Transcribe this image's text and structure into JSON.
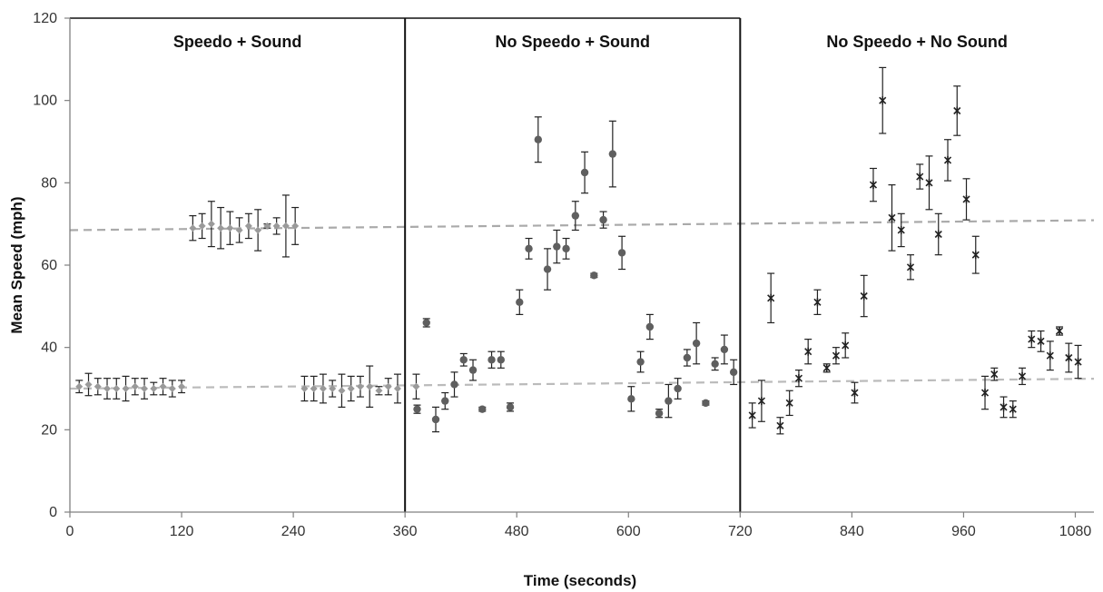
{
  "chart_data": {
    "type": "scatter",
    "title": "",
    "xlabel": "Time (seconds)",
    "ylabel": "Mean Speed (mph)",
    "xlim": [
      0,
      1100
    ],
    "ylim": [
      0,
      120
    ],
    "x_ticks": [
      0,
      120,
      240,
      360,
      480,
      600,
      720,
      840,
      960,
      1080
    ],
    "y_ticks": [
      0,
      20,
      40,
      60,
      80,
      100,
      120
    ],
    "grid": false,
    "phase_dividers": [
      360,
      720
    ],
    "phases": [
      {
        "label": "Speedo + Sound",
        "x_center": 180
      },
      {
        "label": "No Speedo + Sound",
        "x_center": 540
      },
      {
        "label": "No Speedo + No  Sound",
        "x_center": 910
      }
    ],
    "trend_lines": [
      {
        "x": [
          0,
          1100
        ],
        "y": [
          68.5,
          70.9
        ],
        "color": "#aaaaaa"
      },
      {
        "x": [
          0,
          1100
        ],
        "y": [
          30.0,
          32.4
        ],
        "color": "#bbbbbb"
      }
    ],
    "series": [
      {
        "marker": "diamond",
        "color": "#9a9a9a",
        "points": [
          {
            "x": 10,
            "y": 30.5,
            "err": 1.5
          },
          {
            "x": 20,
            "y": 31.0,
            "err": 2.7
          },
          {
            "x": 30,
            "y": 30.5,
            "err": 2.0
          },
          {
            "x": 40,
            "y": 30.0,
            "err": 2.5
          },
          {
            "x": 50,
            "y": 30.0,
            "err": 2.5
          },
          {
            "x": 60,
            "y": 30.0,
            "err": 3.0
          },
          {
            "x": 70,
            "y": 30.5,
            "err": 2.0
          },
          {
            "x": 80,
            "y": 30.0,
            "err": 2.5
          },
          {
            "x": 90,
            "y": 30.0,
            "err": 1.5
          },
          {
            "x": 100,
            "y": 30.5,
            "err": 2.0
          },
          {
            "x": 110,
            "y": 30.0,
            "err": 2.0
          },
          {
            "x": 120,
            "y": 30.5,
            "err": 1.5
          },
          {
            "x": 132,
            "y": 69.0,
            "err": 3.0
          },
          {
            "x": 142,
            "y": 69.5,
            "err": 3.0
          },
          {
            "x": 152,
            "y": 70.0,
            "err": 5.5
          },
          {
            "x": 162,
            "y": 69.0,
            "err": 5.0
          },
          {
            "x": 172,
            "y": 69.0,
            "err": 4.0
          },
          {
            "x": 182,
            "y": 68.5,
            "err": 3.0
          },
          {
            "x": 192,
            "y": 69.5,
            "err": 3.0
          },
          {
            "x": 202,
            "y": 68.5,
            "err": 5.0
          },
          {
            "x": 212,
            "y": 69.5,
            "err": 0.5
          },
          {
            "x": 222,
            "y": 69.5,
            "err": 2.0
          },
          {
            "x": 232,
            "y": 69.5,
            "err": 7.5
          },
          {
            "x": 242,
            "y": 69.5,
            "err": 4.5
          },
          {
            "x": 252,
            "y": 30.0,
            "err": 3.0
          },
          {
            "x": 262,
            "y": 30.0,
            "err": 3.0
          },
          {
            "x": 272,
            "y": 30.0,
            "err": 3.5
          },
          {
            "x": 282,
            "y": 30.0,
            "err": 2.0
          },
          {
            "x": 292,
            "y": 29.5,
            "err": 4.0
          },
          {
            "x": 302,
            "y": 30.0,
            "err": 3.0
          },
          {
            "x": 312,
            "y": 30.5,
            "err": 2.5
          },
          {
            "x": 322,
            "y": 30.5,
            "err": 5.0
          },
          {
            "x": 332,
            "y": 29.5,
            "err": 1.0
          },
          {
            "x": 342,
            "y": 30.5,
            "err": 2.0
          },
          {
            "x": 352,
            "y": 30.0,
            "err": 3.5
          },
          {
            "x": 372,
            "y": 30.5,
            "err": 3.0
          }
        ]
      },
      {
        "marker": "circle",
        "color": "#5f5f5f",
        "points": [
          {
            "x": 373,
            "y": 25.0,
            "err": 1.0
          },
          {
            "x": 383,
            "y": 46.0,
            "err": 1.0
          },
          {
            "x": 393,
            "y": 22.5,
            "err": 3.0
          },
          {
            "x": 403,
            "y": 27.0,
            "err": 2.0
          },
          {
            "x": 413,
            "y": 31.0,
            "err": 3.0
          },
          {
            "x": 423,
            "y": 37.0,
            "err": 1.5
          },
          {
            "x": 433,
            "y": 34.5,
            "err": 2.5
          },
          {
            "x": 443,
            "y": 25.0,
            "err": 0.5
          },
          {
            "x": 453,
            "y": 37.0,
            "err": 2.0
          },
          {
            "x": 463,
            "y": 37.0,
            "err": 2.0
          },
          {
            "x": 473,
            "y": 25.5,
            "err": 1.0
          },
          {
            "x": 483,
            "y": 51.0,
            "err": 3.0
          },
          {
            "x": 493,
            "y": 64.0,
            "err": 2.5
          },
          {
            "x": 503,
            "y": 90.5,
            "err": 5.5
          },
          {
            "x": 513,
            "y": 59.0,
            "err": 5.0
          },
          {
            "x": 523,
            "y": 64.5,
            "err": 4.0
          },
          {
            "x": 533,
            "y": 64.0,
            "err": 2.5
          },
          {
            "x": 543,
            "y": 72.0,
            "err": 3.5
          },
          {
            "x": 553,
            "y": 82.5,
            "err": 5.0
          },
          {
            "x": 563,
            "y": 57.5,
            "err": 0.5
          },
          {
            "x": 573,
            "y": 71.0,
            "err": 2.0
          },
          {
            "x": 583,
            "y": 87.0,
            "err": 8.0
          },
          {
            "x": 593,
            "y": 63.0,
            "err": 4.0
          },
          {
            "x": 603,
            "y": 27.5,
            "err": 3.0
          },
          {
            "x": 613,
            "y": 36.5,
            "err": 2.5
          },
          {
            "x": 623,
            "y": 45.0,
            "err": 3.0
          },
          {
            "x": 633,
            "y": 24.0,
            "err": 1.0
          },
          {
            "x": 643,
            "y": 27.0,
            "err": 4.0
          },
          {
            "x": 653,
            "y": 30.0,
            "err": 2.5
          },
          {
            "x": 663,
            "y": 37.5,
            "err": 2.0
          },
          {
            "x": 673,
            "y": 41.0,
            "err": 5.0
          },
          {
            "x": 683,
            "y": 26.5,
            "err": 0.5
          },
          {
            "x": 693,
            "y": 36.0,
            "err": 1.5
          },
          {
            "x": 703,
            "y": 39.5,
            "err": 3.5
          },
          {
            "x": 713,
            "y": 34.0,
            "err": 3.0
          }
        ]
      },
      {
        "marker": "star",
        "color": "#222222",
        "points": [
          {
            "x": 733,
            "y": 23.5,
            "err": 3.0
          },
          {
            "x": 743,
            "y": 27.0,
            "err": 5.0
          },
          {
            "x": 753,
            "y": 52.0,
            "err": 6.0
          },
          {
            "x": 763,
            "y": 21.0,
            "err": 2.0
          },
          {
            "x": 773,
            "y": 26.5,
            "err": 3.0
          },
          {
            "x": 783,
            "y": 32.5,
            "err": 2.0
          },
          {
            "x": 793,
            "y": 39.0,
            "err": 3.0
          },
          {
            "x": 803,
            "y": 51.0,
            "err": 3.0
          },
          {
            "x": 813,
            "y": 35.0,
            "err": 1.0
          },
          {
            "x": 823,
            "y": 38.0,
            "err": 2.0
          },
          {
            "x": 833,
            "y": 40.5,
            "err": 3.0
          },
          {
            "x": 843,
            "y": 29.0,
            "err": 2.5
          },
          {
            "x": 853,
            "y": 52.5,
            "err": 5.0
          },
          {
            "x": 863,
            "y": 79.5,
            "err": 4.0
          },
          {
            "x": 873,
            "y": 100.0,
            "err": 8.0
          },
          {
            "x": 883,
            "y": 71.5,
            "err": 8.0
          },
          {
            "x": 893,
            "y": 68.5,
            "err": 4.0
          },
          {
            "x": 903,
            "y": 59.5,
            "err": 3.0
          },
          {
            "x": 913,
            "y": 81.5,
            "err": 3.0
          },
          {
            "x": 923,
            "y": 80.0,
            "err": 6.5
          },
          {
            "x": 933,
            "y": 67.5,
            "err": 5.0
          },
          {
            "x": 943,
            "y": 85.5,
            "err": 5.0
          },
          {
            "x": 953,
            "y": 97.5,
            "err": 6.0
          },
          {
            "x": 963,
            "y": 76.0,
            "err": 5.0
          },
          {
            "x": 973,
            "y": 62.5,
            "err": 4.5
          },
          {
            "x": 983,
            "y": 29.0,
            "err": 4.0
          },
          {
            "x": 993,
            "y": 33.5,
            "err": 1.5
          },
          {
            "x": 1003,
            "y": 25.5,
            "err": 2.5
          },
          {
            "x": 1013,
            "y": 25.0,
            "err": 2.0
          },
          {
            "x": 1023,
            "y": 33.0,
            "err": 2.0
          },
          {
            "x": 1033,
            "y": 42.0,
            "err": 2.0
          },
          {
            "x": 1043,
            "y": 41.5,
            "err": 2.5
          },
          {
            "x": 1053,
            "y": 38.0,
            "err": 3.5
          },
          {
            "x": 1063,
            "y": 44.0,
            "err": 1.0
          },
          {
            "x": 1073,
            "y": 37.5,
            "err": 3.5
          },
          {
            "x": 1083,
            "y": 36.5,
            "err": 4.0
          }
        ]
      }
    ]
  }
}
